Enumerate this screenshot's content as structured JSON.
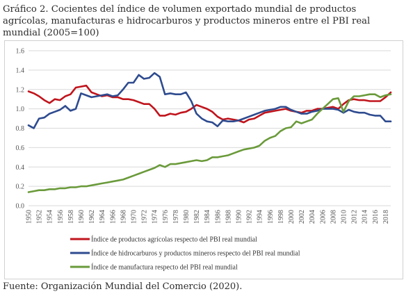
{
  "title": "Gráfico 2. Cocientes del índice de volumen exportado mundial de productos agrícolas, manufacturas e hidrocarburos y productos mineros entre el PBI real mundial (2005=100)",
  "source": "Fuente: Organización Mundial del Comercio (2020).",
  "chart_data": {
    "type": "line",
    "title": "Gráfico 2. Cocientes del índice de volumen exportado mundial de productos agrícolas, manufacturas e hidrocarburos y productos mineros entre el PBI real mundial (2005=100)",
    "xlabel": "",
    "ylabel": "",
    "ylim": [
      0,
      1.6
    ],
    "yticks": [
      "0.0",
      "0.2",
      "0.4",
      "0.6",
      "0.8",
      "1.0",
      "1.2",
      "1.4",
      "1.6"
    ],
    "x": [
      1950,
      1951,
      1952,
      1953,
      1954,
      1955,
      1956,
      1957,
      1958,
      1959,
      1960,
      1961,
      1962,
      1963,
      1964,
      1965,
      1966,
      1967,
      1968,
      1969,
      1970,
      1971,
      1972,
      1973,
      1974,
      1975,
      1976,
      1977,
      1978,
      1979,
      1980,
      1981,
      1982,
      1983,
      1984,
      1985,
      1986,
      1987,
      1988,
      1989,
      1990,
      1991,
      1992,
      1993,
      1994,
      1995,
      1996,
      1997,
      1998,
      1999,
      2000,
      2001,
      2002,
      2003,
      2004,
      2005,
      2006,
      2007,
      2008,
      2009,
      2010,
      2011,
      2012,
      2013,
      2014,
      2015,
      2016,
      2017,
      2018,
      2019
    ],
    "xticks": [
      "1950",
      "1952",
      "1954",
      "1956",
      "1958",
      "1960",
      "1962",
      "1964",
      "1966",
      "1968",
      "1970",
      "1972",
      "1974",
      "1976",
      "1978",
      "1980",
      "1982",
      "1984",
      "1986",
      "1988",
      "1990",
      "1992",
      "1994",
      "1996",
      "1998",
      "2000",
      "2002",
      "2004",
      "2006",
      "2008",
      "2010",
      "2012",
      "2014",
      "2016",
      "2018"
    ],
    "grid": true,
    "legend_position": "bottom",
    "series": [
      {
        "name": "Índice de productos agrícolas respecto del PBI real mundial",
        "color": "#c0141c",
        "values": [
          1.18,
          1.16,
          1.13,
          1.09,
          1.06,
          1.1,
          1.09,
          1.13,
          1.15,
          1.22,
          1.23,
          1.24,
          1.17,
          1.15,
          1.13,
          1.14,
          1.12,
          1.12,
          1.1,
          1.1,
          1.09,
          1.07,
          1.05,
          1.05,
          1.0,
          0.93,
          0.93,
          0.95,
          0.94,
          0.96,
          0.97,
          1.0,
          1.04,
          1.02,
          1.0,
          0.97,
          0.92,
          0.89,
          0.9,
          0.89,
          0.88,
          0.86,
          0.89,
          0.9,
          0.93,
          0.96,
          0.97,
          0.98,
          0.99,
          1.0,
          0.98,
          0.97,
          0.96,
          0.98,
          0.98,
          1.0,
          1.0,
          1.01,
          1.02,
          1.0,
          1.05,
          1.09,
          1.1,
          1.09,
          1.09,
          1.08,
          1.08,
          1.08,
          1.12,
          1.17
        ]
      },
      {
        "name": "Índice de hidrocarburos y productos mineros respecto del PBI real mundial",
        "color": "#2e4b8f",
        "values": [
          0.83,
          0.8,
          0.9,
          0.91,
          0.95,
          0.97,
          0.99,
          1.03,
          0.98,
          1.0,
          1.16,
          1.14,
          1.12,
          1.13,
          1.14,
          1.15,
          1.13,
          1.14,
          1.2,
          1.27,
          1.27,
          1.35,
          1.31,
          1.32,
          1.37,
          1.33,
          1.15,
          1.16,
          1.15,
          1.15,
          1.17,
          1.08,
          0.95,
          0.9,
          0.87,
          0.86,
          0.82,
          0.88,
          0.87,
          0.87,
          0.88,
          0.9,
          0.92,
          0.94,
          0.96,
          0.98,
          0.99,
          1.0,
          1.02,
          1.02,
          0.99,
          0.97,
          0.95,
          0.95,
          0.97,
          0.98,
          1.0,
          1.0,
          1.0,
          0.99,
          0.96,
          0.99,
          0.97,
          0.96,
          0.96,
          0.94,
          0.93,
          0.93,
          0.87,
          0.87
        ]
      },
      {
        "name": "Índice de manufactura respecto del PBI real mundial",
        "color": "#6a9a3a",
        "values": [
          0.14,
          0.15,
          0.16,
          0.16,
          0.17,
          0.17,
          0.18,
          0.18,
          0.19,
          0.19,
          0.2,
          0.2,
          0.21,
          0.22,
          0.23,
          0.24,
          0.25,
          0.26,
          0.27,
          0.29,
          0.31,
          0.33,
          0.35,
          0.37,
          0.39,
          0.42,
          0.4,
          0.43,
          0.43,
          0.44,
          0.45,
          0.46,
          0.47,
          0.46,
          0.47,
          0.5,
          0.5,
          0.51,
          0.52,
          0.54,
          0.56,
          0.58,
          0.59,
          0.6,
          0.62,
          0.67,
          0.7,
          0.72,
          0.77,
          0.8,
          0.81,
          0.87,
          0.85,
          0.87,
          0.89,
          0.95,
          1.0,
          1.05,
          1.1,
          1.11,
          0.97,
          1.08,
          1.13,
          1.13,
          1.14,
          1.15,
          1.15,
          1.12,
          1.14,
          1.15
        ]
      }
    ]
  }
}
